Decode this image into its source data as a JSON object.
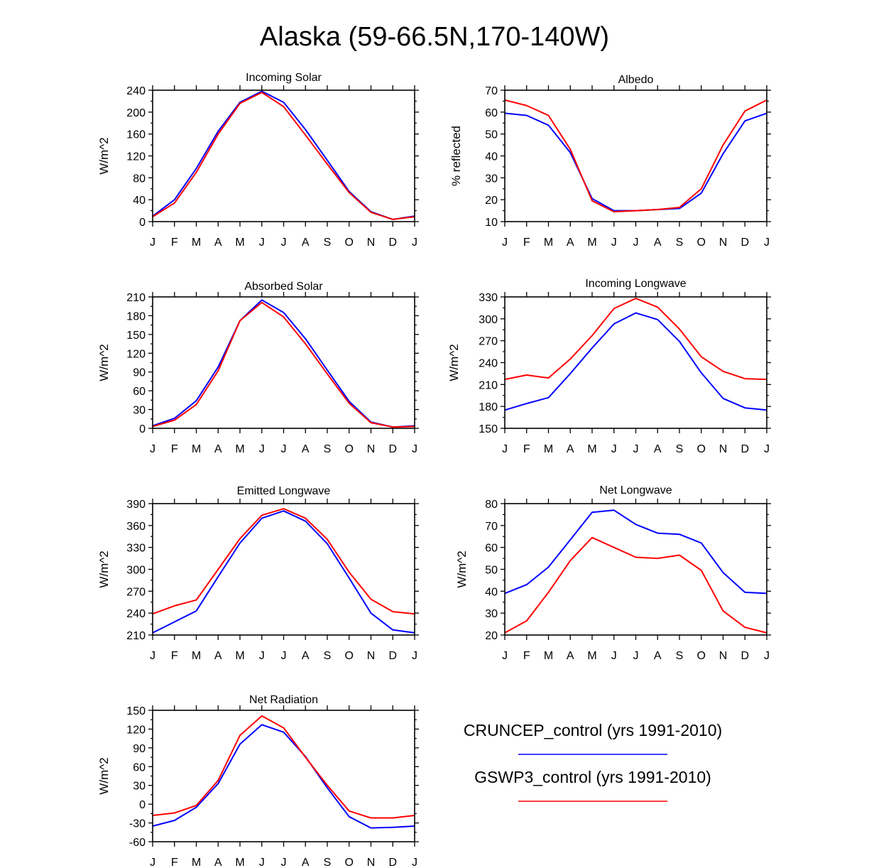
{
  "title": "Alaska (59-66.5N,170-140W)",
  "colors": {
    "series_a": "#0000ff",
    "series_b": "#ff0000",
    "axis": "#000000"
  },
  "legend": [
    {
      "label": "CRUNCEP_control (yrs 1991-2010)",
      "color": "#0000ff"
    },
    {
      "label": "GSWP3_control (yrs 1991-2010)",
      "color": "#ff0000"
    }
  ],
  "chart_data": [
    {
      "type": "line",
      "title": "Incoming Solar",
      "ylabel": "W/m^2",
      "xlabel": "",
      "categories": [
        "J",
        "F",
        "M",
        "A",
        "M",
        "J",
        "J",
        "A",
        "S",
        "O",
        "N",
        "D",
        "J"
      ],
      "ylim": [
        0,
        240
      ],
      "yticks": [
        0,
        40,
        80,
        120,
        160,
        200,
        240
      ],
      "series": [
        {
          "name": "CRUNCEP_control (yrs 1991-2010)",
          "color": "#0000ff",
          "values": [
            10,
            40,
            97,
            165,
            218,
            238,
            218,
            168,
            112,
            55,
            18,
            4,
            10
          ]
        },
        {
          "name": "GSWP3_control (yrs 1991-2010)",
          "color": "#ff0000",
          "values": [
            9,
            34,
            90,
            160,
            216,
            236,
            210,
            158,
            105,
            53,
            17,
            4,
            9
          ]
        }
      ]
    },
    {
      "type": "line",
      "title": "Albedo",
      "ylabel": "% reflected",
      "xlabel": "",
      "categories": [
        "J",
        "F",
        "M",
        "A",
        "M",
        "J",
        "J",
        "A",
        "S",
        "O",
        "N",
        "D",
        "J"
      ],
      "ylim": [
        10,
        70
      ],
      "yticks": [
        10,
        20,
        30,
        40,
        50,
        60,
        70
      ],
      "series": [
        {
          "name": "CRUNCEP_control (yrs 1991-2010)",
          "color": "#0000ff",
          "values": [
            59.5,
            58.5,
            54,
            41.5,
            20.5,
            15,
            15,
            15.5,
            16,
            23,
            41,
            56,
            59.5
          ]
        },
        {
          "name": "GSWP3_control (yrs 1991-2010)",
          "color": "#ff0000",
          "values": [
            65.5,
            63,
            58.5,
            43,
            19.5,
            14.5,
            15,
            15.5,
            16.5,
            25,
            45,
            60.5,
            65.5
          ]
        }
      ]
    },
    {
      "type": "line",
      "title": "Absorbed Solar",
      "ylabel": "W/m^2",
      "xlabel": "",
      "categories": [
        "J",
        "F",
        "M",
        "A",
        "M",
        "J",
        "J",
        "A",
        "S",
        "O",
        "N",
        "D",
        "J"
      ],
      "ylim": [
        0,
        210
      ],
      "yticks": [
        0,
        30,
        60,
        90,
        120,
        150,
        180,
        210
      ],
      "series": [
        {
          "name": "CRUNCEP_control (yrs 1991-2010)",
          "color": "#0000ff",
          "values": [
            4,
            16,
            44,
            98,
            172,
            205,
            185,
            143,
            93,
            43,
            10,
            2,
            4
          ]
        },
        {
          "name": "GSWP3_control (yrs 1991-2010)",
          "color": "#ff0000",
          "values": [
            3,
            13,
            38,
            92,
            172,
            201,
            178,
            135,
            87,
            40,
            9,
            2,
            3
          ]
        }
      ]
    },
    {
      "type": "line",
      "title": "Incoming Longwave",
      "ylabel": "W/m^2",
      "xlabel": "",
      "categories": [
        "J",
        "F",
        "M",
        "A",
        "M",
        "J",
        "J",
        "A",
        "S",
        "O",
        "N",
        "D",
        "J"
      ],
      "ylim": [
        150,
        330
      ],
      "yticks": [
        150,
        180,
        210,
        240,
        270,
        300,
        330
      ],
      "series": [
        {
          "name": "CRUNCEP_control (yrs 1991-2010)",
          "color": "#0000ff",
          "values": [
            175,
            184,
            192,
            225,
            260,
            293,
            308,
            299,
            269,
            226,
            191,
            178,
            175
          ]
        },
        {
          "name": "GSWP3_control (yrs 1991-2010)",
          "color": "#ff0000",
          "values": [
            217,
            223,
            219,
            245,
            277,
            314,
            328,
            316,
            286,
            248,
            228,
            218,
            217
          ]
        }
      ]
    },
    {
      "type": "line",
      "title": "Emitted Longwave",
      "ylabel": "W/m^2",
      "xlabel": "",
      "categories": [
        "J",
        "F",
        "M",
        "A",
        "M",
        "J",
        "J",
        "A",
        "S",
        "O",
        "N",
        "D",
        "J"
      ],
      "ylim": [
        210,
        390
      ],
      "yticks": [
        210,
        240,
        270,
        300,
        330,
        360,
        390
      ],
      "series": [
        {
          "name": "CRUNCEP_control (yrs 1991-2010)",
          "color": "#0000ff",
          "values": [
            213,
            228,
            243,
            290,
            336,
            370,
            380,
            366,
            335,
            288,
            240,
            217,
            213
          ]
        },
        {
          "name": "GSWP3_control (yrs 1991-2010)",
          "color": "#ff0000",
          "values": [
            239,
            250,
            258,
            300,
            342,
            374,
            383,
            370,
            341,
            296,
            259,
            242,
            239
          ]
        }
      ]
    },
    {
      "type": "line",
      "title": "Net Longwave",
      "ylabel": "W/m^2",
      "xlabel": "",
      "categories": [
        "J",
        "F",
        "M",
        "A",
        "M",
        "J",
        "J",
        "A",
        "S",
        "O",
        "N",
        "D",
        "J"
      ],
      "ylim": [
        20,
        80
      ],
      "yticks": [
        20,
        30,
        40,
        50,
        60,
        70,
        80
      ],
      "series": [
        {
          "name": "CRUNCEP_control (yrs 1991-2010)",
          "color": "#0000ff",
          "values": [
            39,
            43,
            51,
            63.5,
            76,
            77,
            70.5,
            66.5,
            66,
            62,
            48.5,
            39.5,
            39
          ]
        },
        {
          "name": "GSWP3_control (yrs 1991-2010)",
          "color": "#ff0000",
          "values": [
            21,
            26.5,
            39.5,
            54,
            64.5,
            60,
            55.5,
            55,
            56.5,
            49.5,
            31,
            23.5,
            21
          ]
        }
      ]
    },
    {
      "type": "line",
      "title": "Net Radiation",
      "ylabel": "W/m^2",
      "xlabel": "",
      "categories": [
        "J",
        "F",
        "M",
        "A",
        "M",
        "J",
        "J",
        "A",
        "S",
        "O",
        "N",
        "D",
        "J"
      ],
      "ylim": [
        -60,
        150
      ],
      "yticks": [
        -60,
        -30,
        0,
        30,
        60,
        90,
        120,
        150
      ],
      "series": [
        {
          "name": "CRUNCEP_control (yrs 1991-2010)",
          "color": "#0000ff",
          "values": [
            -35,
            -26,
            -5,
            33,
            96,
            127,
            115,
            76,
            26,
            -20,
            -38,
            -37,
            -35
          ]
        },
        {
          "name": "GSWP3_control (yrs 1991-2010)",
          "color": "#ff0000",
          "values": [
            -18,
            -14,
            -2,
            38,
            110,
            141,
            122,
            75,
            30,
            -11,
            -22,
            -22,
            -18
          ]
        }
      ]
    }
  ]
}
